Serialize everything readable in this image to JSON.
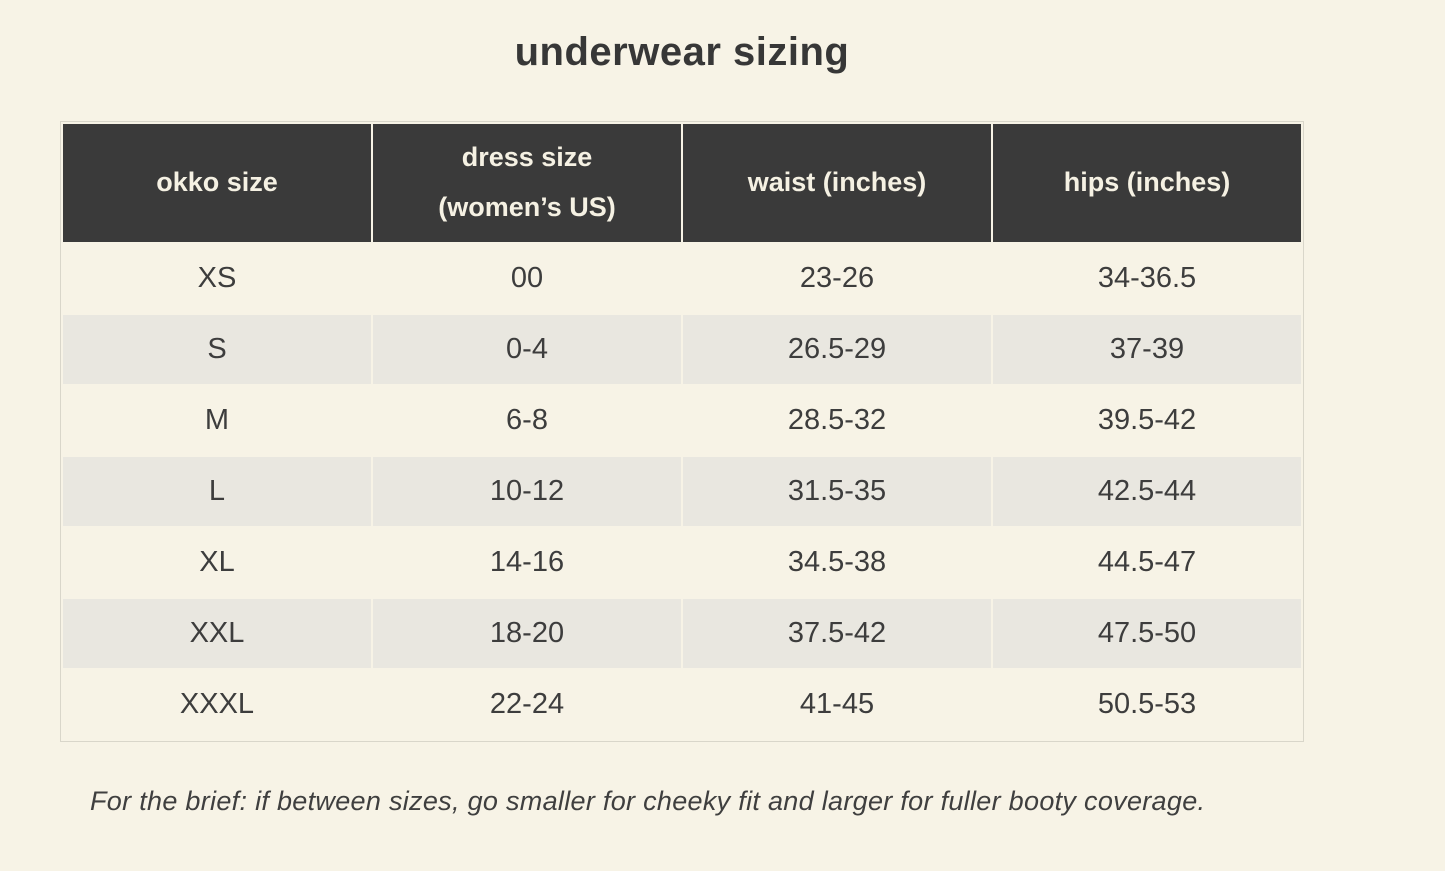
{
  "page": {
    "title": "underwear sizing",
    "footnote": "For the brief: if between sizes, go smaller for cheeky fit and larger for fuller booty coverage."
  },
  "colors": {
    "background": "#f7f3e6",
    "header_bg": "#3a3a3a",
    "header_text": "#f5f1e3",
    "row_alt_bg": "#e9e7e0",
    "text": "#3d3d3d",
    "table_border": "#d9d6ca"
  },
  "table": {
    "headers": [
      "okko size",
      "dress size\n(women’s US)",
      "waist (inches)",
      "hips (inches)"
    ],
    "rows": [
      [
        "XS",
        "00",
        "23-26",
        "34-36.5"
      ],
      [
        "S",
        "0-4",
        "26.5-29",
        "37-39"
      ],
      [
        "M",
        "6-8",
        "28.5-32",
        "39.5-42"
      ],
      [
        "L",
        "10-12",
        "31.5-35",
        "42.5-44"
      ],
      [
        "XL",
        "14-16",
        "34.5-38",
        "44.5-47"
      ],
      [
        "XXL",
        "18-20",
        "37.5-42",
        "47.5-50"
      ],
      [
        "XXXL",
        "22-24",
        "41-45",
        "50.5-53"
      ]
    ]
  },
  "chart_data": {
    "type": "table",
    "title": "underwear sizing",
    "columns": [
      "okko size",
      "dress size (women’s US)",
      "waist (inches)",
      "hips (inches)"
    ],
    "rows": [
      [
        "XS",
        "00",
        "23-26",
        "34-36.5"
      ],
      [
        "S",
        "0-4",
        "26.5-29",
        "37-39"
      ],
      [
        "M",
        "6-8",
        "28.5-32",
        "39.5-42"
      ],
      [
        "L",
        "10-12",
        "31.5-35",
        "42.5-44"
      ],
      [
        "XL",
        "14-16",
        "34.5-38",
        "44.5-47"
      ],
      [
        "XXL",
        "18-20",
        "37.5-42",
        "47.5-50"
      ],
      [
        "XXXL",
        "22-24",
        "41-45",
        "50.5-53"
      ]
    ],
    "footnote": "For the brief: if between sizes, go smaller for cheeky fit and larger for fuller booty coverage."
  }
}
